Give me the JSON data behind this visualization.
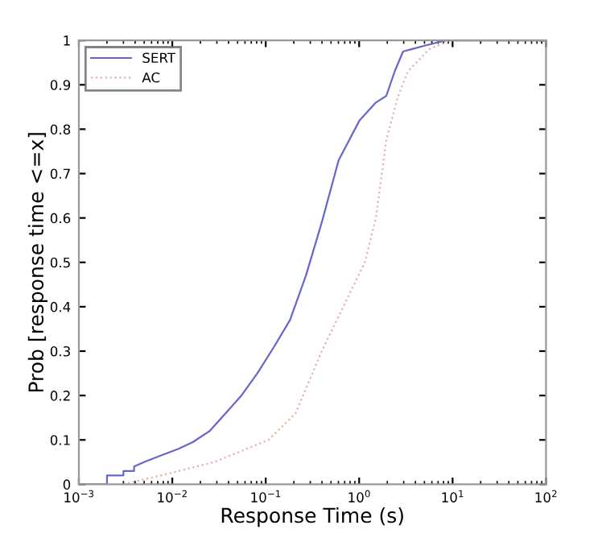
{
  "chart_data": {
    "type": "line",
    "xlabel": "Response Time (s)",
    "ylabel": "Prob [response time <=x]",
    "log": "x",
    "legend": "top left",
    "grid": false,
    "xlim": [
      0.001,
      100
    ],
    "ylim": [
      0,
      1
    ],
    "xticks": [
      {
        "value": 0.001,
        "label": "10$^{−3}$"
      },
      {
        "value": 0.01,
        "label": "10$^{−2}$"
      },
      {
        "value": 0.1,
        "label": "10$^{−1}$"
      },
      {
        "value": 1,
        "label": "10$^{0}$"
      },
      {
        "value": 10,
        "label": "10$^{1}$"
      },
      {
        "value": 100,
        "label": "10$^{2}$"
      }
    ],
    "yticks": [
      0,
      0.1,
      0.2,
      0.3,
      0.4,
      0.5,
      0.6,
      0.7,
      0.8,
      0.9,
      1
    ],
    "series": [
      {
        "name": "SERT",
        "color": "#6666cc",
        "line_style": "solid",
        "x": [
          0.001,
          0.002,
          0.002,
          0.003,
          0.003,
          0.0039,
          0.0039,
          0.005,
          0.0076,
          0.0117,
          0.0166,
          0.0251,
          0.0372,
          0.0549,
          0.0813,
          0.123,
          0.182,
          0.269,
          0.398,
          0.603,
          1.01,
          1.51,
          1.95,
          2.4,
          2.95,
          5.0,
          8.5,
          100
        ],
        "values": [
          0,
          0,
          0.02,
          0.02,
          0.03,
          0.03,
          0.04,
          0.05,
          0.065,
          0.08,
          0.095,
          0.12,
          0.16,
          0.2,
          0.25,
          0.31,
          0.37,
          0.47,
          0.59,
          0.73,
          0.82,
          0.86,
          0.875,
          0.93,
          0.975,
          0.988,
          1,
          1
        ]
      },
      {
        "name": "AC",
        "color": "#e8b0a0",
        "line_style": "dotted",
        "x": [
          0.003,
          0.0076,
          0.028,
          0.107,
          0.209,
          0.398,
          0.676,
          1.15,
          1.51,
          1.95,
          2.57,
          3.31,
          5.6,
          9.5,
          100
        ],
        "values": [
          0,
          0.02,
          0.05,
          0.1,
          0.16,
          0.3,
          0.4,
          0.5,
          0.6,
          0.775,
          0.87,
          0.93,
          0.98,
          1,
          1
        ]
      }
    ]
  }
}
